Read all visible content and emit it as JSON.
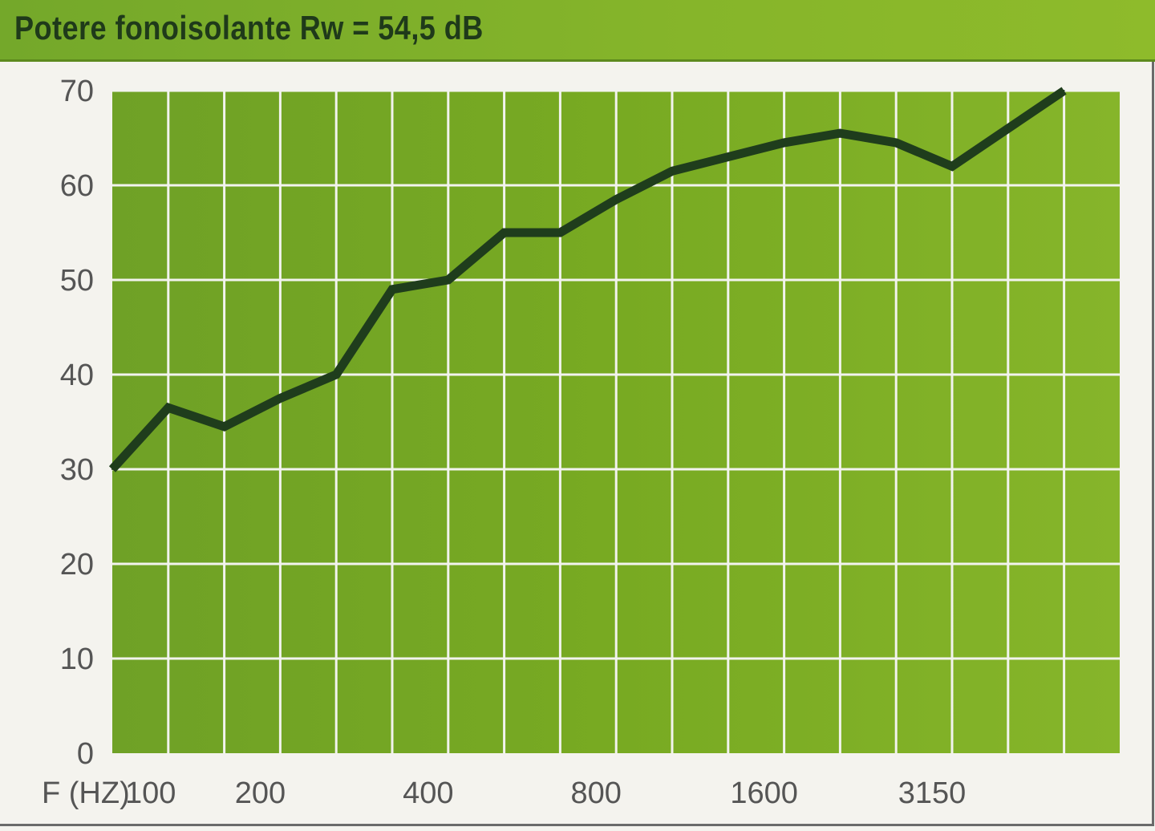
{
  "title": "Potere fonoisolante Rw = 54,5 dB",
  "chart_data": {
    "type": "line",
    "title": "Potere fonoisolante Rw = 54,5 dB",
    "xlabel": "F (HZ)",
    "ylabel": "",
    "x": [
      "100",
      "125",
      "160",
      "200",
      "250",
      "315",
      "400",
      "500",
      "630",
      "800",
      "1000",
      "1250",
      "1600",
      "2000",
      "2500",
      "3150",
      "4000",
      "5000"
    ],
    "x_tick_labels": [
      "100",
      "200",
      "400",
      "800",
      "1600",
      "3150"
    ],
    "ylim": [
      0,
      70
    ],
    "y_ticks": [
      0,
      10,
      20,
      30,
      40,
      50,
      60,
      70
    ],
    "grid": true,
    "series": [
      {
        "values": [
          30,
          36.5,
          34.5,
          37.5,
          40,
          49,
          50,
          55,
          55,
          58.5,
          61.5,
          63,
          64.5,
          65.5,
          64.5,
          62,
          66,
          70
        ]
      }
    ],
    "colors": {
      "plot_bg": "#78a924",
      "grid": "#f2f3ee",
      "line": "#1f3d1c",
      "header_bg": "#7cad2a",
      "title_text": "#1f3a1a"
    }
  }
}
